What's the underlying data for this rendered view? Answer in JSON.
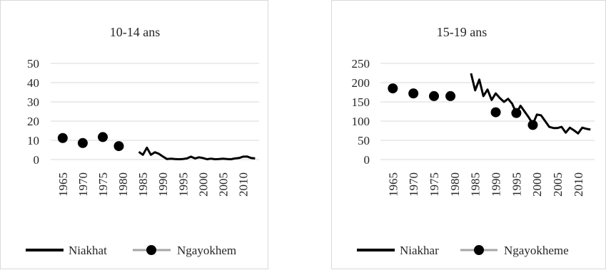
{
  "chart_data": [
    {
      "type": "line",
      "title": "10-14 ans",
      "xlabel": "",
      "ylabel": "",
      "ylim": [
        0,
        50
      ],
      "yticks": [
        "0",
        "10",
        "20",
        "30",
        "40",
        "50"
      ],
      "xticks": [
        "1965",
        "1970",
        "1975",
        "1980",
        "1985",
        "1990",
        "1995",
        "2000",
        "2005",
        "2010"
      ],
      "grid": true,
      "legend_position": "bottom",
      "series": [
        {
          "name": "Niakhat",
          "style": "line",
          "color": "#000000",
          "x": [
            1984,
            1985,
            1986,
            1987,
            1988,
            1989,
            1990,
            1991,
            1992,
            1993,
            1994,
            1995,
            1996,
            1997,
            1998,
            1999,
            2000,
            2001,
            2002,
            2003,
            2004,
            2005,
            2006,
            2007,
            2008,
            2009,
            2010,
            2011,
            2012,
            2013
          ],
          "y": [
            4.0,
            2.5,
            6.2,
            2.5,
            3.8,
            3.0,
            1.6,
            0.3,
            0.5,
            0.3,
            0.2,
            0.3,
            0.6,
            1.5,
            0.6,
            1.2,
            0.8,
            0.2,
            0.5,
            0.2,
            0.3,
            0.5,
            0.3,
            0.2,
            0.6,
            0.8,
            1.5,
            1.6,
            0.8,
            0.6
          ]
        },
        {
          "name": "Ngayokhem",
          "style": "marker",
          "color": "#000000",
          "x": [
            1965,
            1970,
            1975,
            1979
          ],
          "y": [
            11.2,
            8.6,
            11.7,
            7.0
          ]
        }
      ]
    },
    {
      "type": "line",
      "title": "15-19 ans",
      "xlabel": "",
      "ylabel": "",
      "ylim": [
        0,
        250
      ],
      "yticks": [
        "0",
        "50",
        "100",
        "150",
        "200",
        "250"
      ],
      "xticks": [
        "1965",
        "1970",
        "1975",
        "1980",
        "1985",
        "1990",
        "1995",
        "2000",
        "2005",
        "2010"
      ],
      "grid": true,
      "legend_position": "bottom",
      "series": [
        {
          "name": "Niakhar",
          "style": "line",
          "color": "#000000",
          "x": [
            1984,
            1985,
            1986,
            1987,
            1988,
            1989,
            1990,
            1991,
            1992,
            1993,
            1994,
            1995,
            1996,
            1997,
            1998,
            1999,
            2000,
            2001,
            2002,
            2003,
            2004,
            2005,
            2006,
            2007,
            2008,
            2009,
            2010,
            2011,
            2012,
            2013
          ],
          "y": [
            224,
            180,
            208,
            165,
            182,
            155,
            172,
            160,
            150,
            158,
            145,
            120,
            140,
            125,
            110,
            92,
            117,
            115,
            100,
            85,
            82,
            82,
            85,
            70,
            83,
            76,
            68,
            83,
            80,
            78
          ]
        },
        {
          "name": "Ngayokheme",
          "style": "marker",
          "color": "#000000",
          "x": [
            1965,
            1970,
            1975,
            1979,
            1990,
            1995,
            1999
          ],
          "y": [
            185,
            172,
            165,
            165,
            123,
            121,
            90
          ]
        }
      ]
    }
  ]
}
